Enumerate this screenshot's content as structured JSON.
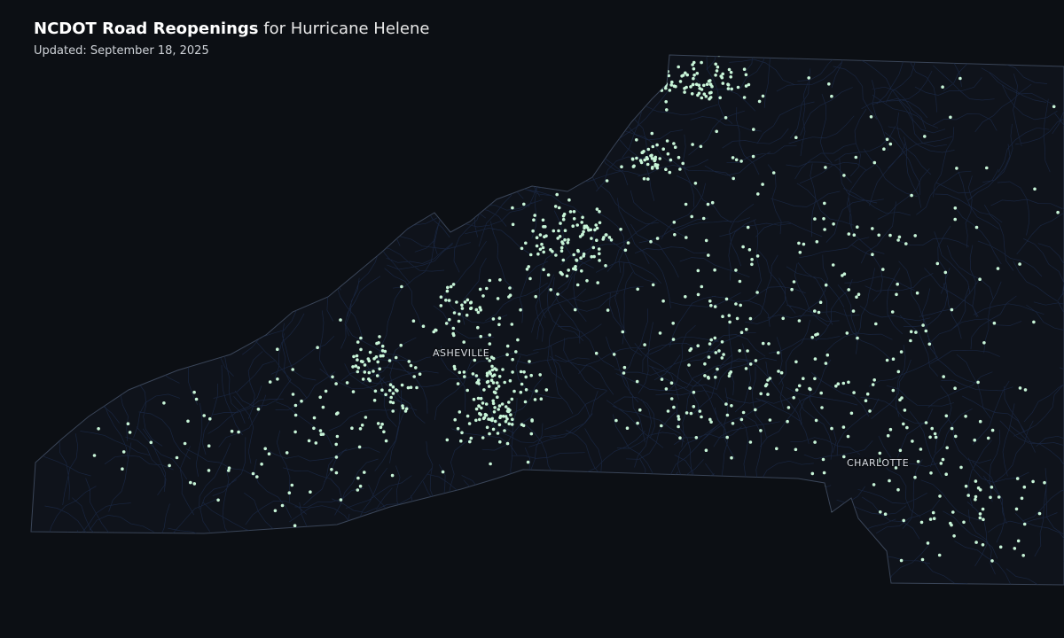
{
  "header": {
    "title_bold": "NCDOT Road Reopenings",
    "title_rest": "for Hurricane Helene",
    "updated": "Updated: September 18, 2025"
  },
  "map": {
    "region": "North Carolina (western and central)",
    "cities": [
      {
        "name": "ASHEVILLE"
      },
      {
        "name": "CHARLOTTE"
      }
    ],
    "colors": {
      "background": "#0c0f14",
      "state_fill": "#0f131b",
      "state_outline": "#3a4558",
      "roads": "#1c2a48",
      "reopening_point": "#c8f5d8"
    },
    "point_icon": "dot"
  }
}
